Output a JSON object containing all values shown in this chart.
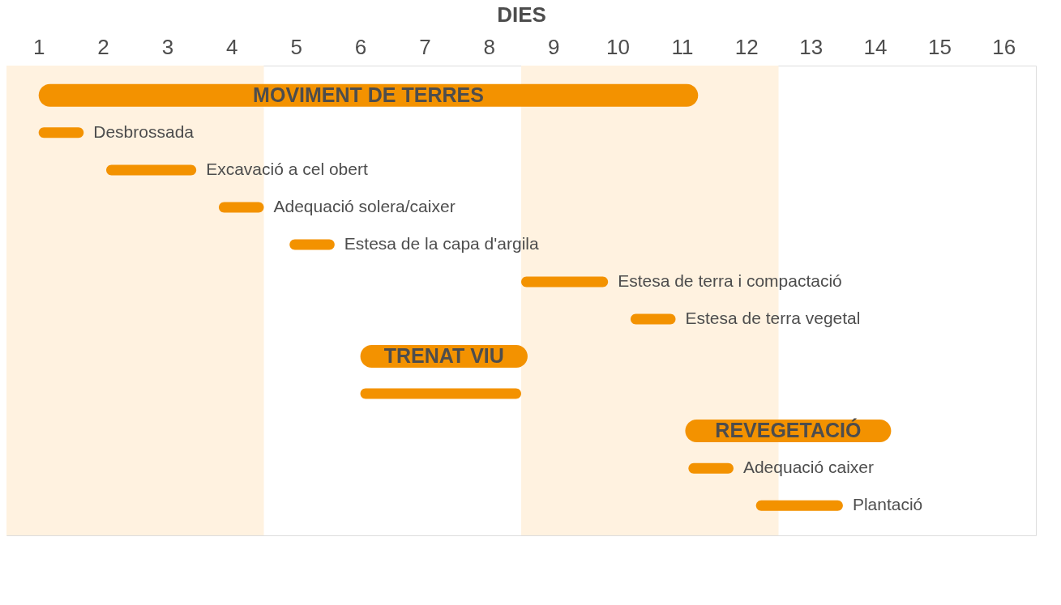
{
  "chart_data": {
    "type": "bar",
    "orientation": "horizontal",
    "xlabel": "DIES",
    "categories": [
      "MOVIMENT DE TERRES",
      "Desbrossada",
      "Excavació a cel obert",
      "Adequació solera/caixer",
      "Estesa de la capa d'argila",
      "Estesa de terra i compactació",
      "Estesa de terra vegetal",
      "TRENAT VIU",
      null,
      "REVEGETACIÓ",
      "Adequació caixer",
      "Plantació"
    ],
    "series": [
      {
        "color": "#f39200",
        "base": [
          1.0,
          null,
          null,
          null,
          null,
          null,
          null,
          6.0,
          null,
          11.05,
          null,
          null
        ],
        "values": [
          10.25,
          null,
          null,
          null,
          null,
          null,
          null,
          2.6,
          null,
          3.2,
          null,
          null
        ]
      },
      {
        "color": "#f39200",
        "base": [
          null,
          1.0,
          2.05,
          3.8,
          4.9,
          8.5,
          10.2,
          null,
          6.0,
          null,
          11.1,
          12.15
        ],
        "values": [
          null,
          0.7,
          1.4,
          0.7,
          0.7,
          1.35,
          0.7,
          null,
          2.5,
          null,
          0.7,
          1.35
        ]
      }
    ],
    "xlim": [
      0.5,
      16.5
    ],
    "xticks": [
      1,
      2,
      3,
      4,
      5,
      6,
      7,
      8,
      9,
      10,
      11,
      12,
      13,
      14,
      15,
      16
    ],
    "bands": [
      {
        "axis": "x",
        "from": 0.5,
        "to": 4.5,
        "color": "#fff2e0"
      },
      {
        "axis": "x",
        "from": 8.5,
        "to": 12.5,
        "color": "#fff2e0"
      }
    ],
    "grid": false
  }
}
